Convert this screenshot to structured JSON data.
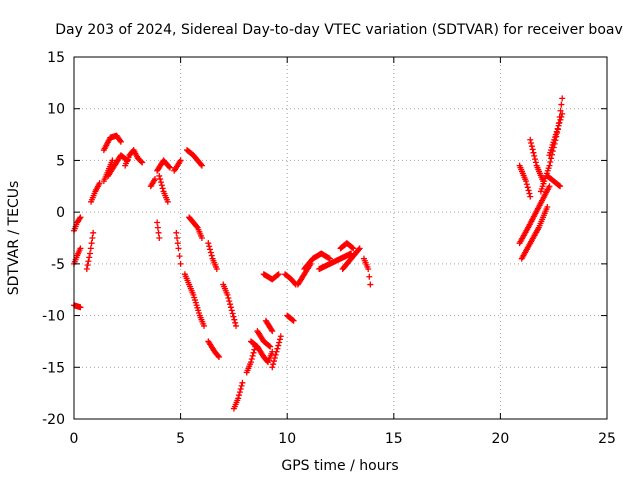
{
  "chart_data": {
    "type": "scatter",
    "title": "Day 203 of 2024, Sidereal Day-to-day VTEC variation (SDTVAR) for receiver boav",
    "xlabel": "GPS time / hours",
    "ylabel": "SDTVAR / TECUs",
    "xlim": [
      0,
      25
    ],
    "ylim": [
      -20,
      15
    ],
    "xticks": [
      "0",
      "5",
      "10",
      "15",
      "20",
      "25"
    ],
    "yticks": [
      "-20",
      "-15",
      "-10",
      "-5",
      "0",
      "5",
      "10",
      "15"
    ],
    "grid": true,
    "marker": "plus",
    "color": "#ff0000",
    "segments": [
      [
        [
          0.0,
          -9.0
        ],
        [
          0.15,
          -9.1
        ],
        [
          0.3,
          -9.2
        ]
      ],
      [
        [
          0.0,
          -1.8
        ],
        [
          0.15,
          -1.0
        ],
        [
          0.3,
          -0.5
        ]
      ],
      [
        [
          0.0,
          -5.0
        ],
        [
          0.15,
          -4.2
        ],
        [
          0.3,
          -3.5
        ]
      ],
      [
        [
          0.6,
          -5.5
        ],
        [
          0.75,
          -4.0
        ],
        [
          0.9,
          -2.0
        ]
      ],
      [
        [
          0.8,
          1.0
        ],
        [
          1.0,
          2.0
        ],
        [
          1.2,
          2.8
        ]
      ],
      [
        [
          1.4,
          3.0
        ],
        [
          1.6,
          4.0
        ],
        [
          1.8,
          5.0
        ]
      ],
      [
        [
          1.4,
          6.0
        ],
        [
          1.7,
          7.2
        ],
        [
          2.0,
          7.4
        ],
        [
          2.2,
          6.8
        ]
      ],
      [
        [
          1.6,
          3.5
        ],
        [
          1.9,
          4.5
        ],
        [
          2.2,
          5.5
        ],
        [
          2.5,
          5.0
        ]
      ],
      [
        [
          2.4,
          4.5
        ],
        [
          2.6,
          5.5
        ],
        [
          2.8,
          6.0
        ],
        [
          3.0,
          5.2
        ],
        [
          3.2,
          4.8
        ]
      ],
      [
        [
          3.6,
          2.5
        ],
        [
          3.8,
          3.2
        ]
      ],
      [
        [
          3.9,
          4.0
        ],
        [
          4.2,
          5.0
        ],
        [
          4.5,
          4.3
        ]
      ],
      [
        [
          4.0,
          3.5
        ],
        [
          4.2,
          2.0
        ],
        [
          4.4,
          1.0
        ]
      ],
      [
        [
          3.9,
          -1.0
        ],
        [
          4.0,
          -2.5
        ]
      ],
      [
        [
          4.7,
          4.0
        ],
        [
          5.0,
          5.0
        ]
      ],
      [
        [
          4.8,
          -2.0
        ],
        [
          4.9,
          -3.5
        ],
        [
          5.0,
          -5.0
        ]
      ],
      [
        [
          5.3,
          6.0
        ],
        [
          5.6,
          5.5
        ],
        [
          6.0,
          4.5
        ]
      ],
      [
        [
          5.4,
          -0.5
        ],
        [
          5.6,
          -1.0
        ],
        [
          5.8,
          -1.5
        ],
        [
          6.0,
          -2.5
        ]
      ],
      [
        [
          5.2,
          -6.0
        ],
        [
          5.6,
          -8.0
        ],
        [
          5.9,
          -10.0
        ],
        [
          6.1,
          -11.0
        ]
      ],
      [
        [
          6.3,
          -3.0
        ],
        [
          6.5,
          -4.5
        ],
        [
          6.7,
          -5.5
        ]
      ],
      [
        [
          6.3,
          -12.5
        ],
        [
          6.6,
          -13.5
        ],
        [
          6.8,
          -14.0
        ]
      ],
      [
        [
          7.0,
          -7.0
        ],
        [
          7.2,
          -8.0
        ],
        [
          7.4,
          -9.5
        ],
        [
          7.6,
          -11.0
        ]
      ],
      [
        [
          7.5,
          -19.0
        ],
        [
          7.7,
          -18.0
        ],
        [
          7.9,
          -16.5
        ]
      ],
      [
        [
          8.1,
          -15.5
        ],
        [
          8.3,
          -14.5
        ],
        [
          8.5,
          -13.0
        ]
      ],
      [
        [
          8.3,
          -12.5
        ],
        [
          8.6,
          -13.0
        ],
        [
          8.9,
          -14.0
        ],
        [
          9.1,
          -14.5
        ],
        [
          9.3,
          -13.5
        ]
      ],
      [
        [
          8.6,
          -11.5
        ],
        [
          8.9,
          -12.5
        ],
        [
          9.2,
          -13.0
        ]
      ],
      [
        [
          8.9,
          -6.0
        ],
        [
          9.3,
          -6.5
        ],
        [
          9.6,
          -6.0
        ]
      ],
      [
        [
          9.0,
          -10.5
        ],
        [
          9.3,
          -11.5
        ]
      ],
      [
        [
          9.3,
          -15.0
        ],
        [
          9.5,
          -13.5
        ],
        [
          9.7,
          -12.0
        ]
      ],
      [
        [
          9.9,
          -6.0
        ],
        [
          10.2,
          -6.5
        ],
        [
          10.4,
          -7.0
        ]
      ],
      [
        [
          10.0,
          -10.0
        ],
        [
          10.3,
          -10.5
        ]
      ],
      [
        [
          10.5,
          -7.0
        ],
        [
          10.8,
          -6.0
        ],
        [
          11.1,
          -5.0
        ]
      ],
      [
        [
          10.8,
          -5.5
        ],
        [
          11.2,
          -4.5
        ],
        [
          11.6,
          -4.0
        ],
        [
          12.0,
          -4.5
        ]
      ],
      [
        [
          11.5,
          -5.5
        ],
        [
          12.0,
          -5.0
        ],
        [
          12.5,
          -4.5
        ],
        [
          13.0,
          -4.0
        ]
      ],
      [
        [
          12.5,
          -3.5
        ],
        [
          12.8,
          -3.0
        ],
        [
          13.1,
          -3.5
        ]
      ],
      [
        [
          12.6,
          -5.5
        ],
        [
          13.0,
          -4.5
        ],
        [
          13.4,
          -3.5
        ]
      ],
      [
        [
          13.6,
          -4.5
        ],
        [
          13.8,
          -5.5
        ],
        [
          13.9,
          -7.0
        ]
      ],
      [
        [
          20.9,
          -3.0
        ],
        [
          21.3,
          -1.5
        ],
        [
          21.8,
          0.5
        ],
        [
          22.3,
          2.5
        ]
      ],
      [
        [
          21.0,
          -4.5
        ],
        [
          21.4,
          -3.0
        ],
        [
          21.8,
          -1.5
        ],
        [
          22.2,
          0.5
        ]
      ],
      [
        [
          20.9,
          4.5
        ],
        [
          21.2,
          3.0
        ],
        [
          21.4,
          1.5
        ]
      ],
      [
        [
          21.4,
          7.0
        ],
        [
          21.7,
          4.5
        ],
        [
          22.0,
          3.0
        ]
      ],
      [
        [
          21.9,
          2.0
        ],
        [
          22.3,
          4.5
        ],
        [
          22.7,
          8.0
        ],
        [
          22.9,
          11.0
        ]
      ],
      [
        [
          22.3,
          5.5
        ],
        [
          22.6,
          7.5
        ],
        [
          22.9,
          9.5
        ]
      ],
      [
        [
          22.2,
          3.5
        ],
        [
          22.5,
          3.0
        ],
        [
          22.8,
          2.5
        ]
      ]
    ]
  }
}
